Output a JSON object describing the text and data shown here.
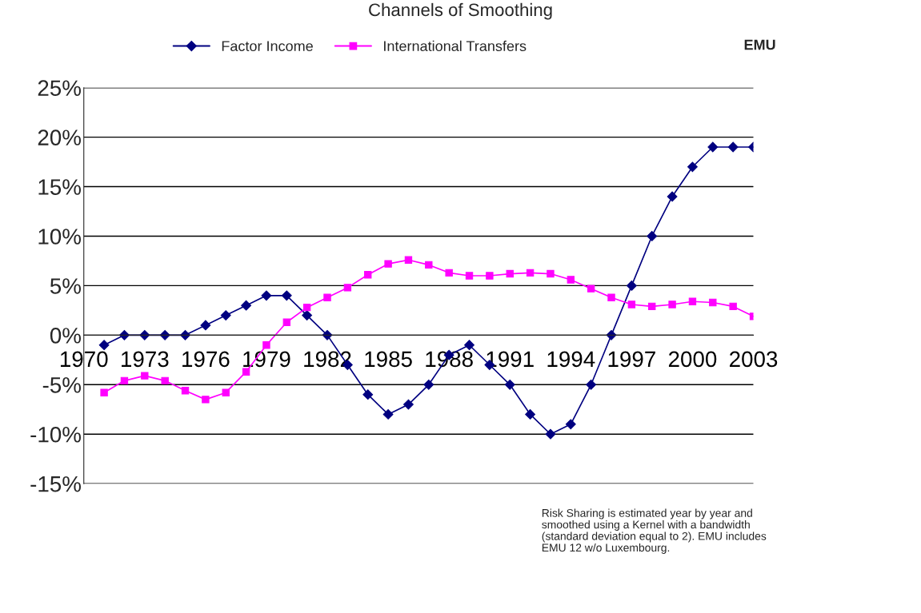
{
  "chart_data": {
    "type": "line",
    "title": "Channels of Smoothing",
    "categories": [
      "1970",
      null,
      null,
      "1973",
      null,
      null,
      "1976",
      null,
      null,
      "1979",
      null,
      null,
      "1982",
      null,
      null,
      "1985",
      null,
      null,
      "1988",
      null,
      null,
      "1991",
      null,
      null,
      "1994",
      null,
      null,
      "1997",
      null,
      null,
      "2000",
      null,
      null,
      "2003"
    ],
    "series": [
      {
        "name": "Factor Income",
        "color": "#000080",
        "marker": "diamond",
        "values": [
          null,
          -1,
          0,
          0,
          0,
          0,
          1,
          2,
          3,
          4,
          4,
          2,
          0,
          -3,
          -6,
          -8,
          -7,
          -5,
          -2,
          -1,
          -3,
          -5,
          -8,
          -10,
          -9,
          -5,
          0,
          5,
          10,
          14,
          17,
          19,
          19,
          19
        ]
      },
      {
        "name": "International Transfers",
        "color": "#ff00ff",
        "marker": "square",
        "values": [
          null,
          -5.8,
          -4.6,
          -4.1,
          -4.6,
          -5.6,
          -6.5,
          -5.8,
          -3.7,
          -1.0,
          1.3,
          2.8,
          3.8,
          4.8,
          6.1,
          7.2,
          7.6,
          7.1,
          6.3,
          6.0,
          6.0,
          6.2,
          6.3,
          6.2,
          5.6,
          4.7,
          3.8,
          3.1,
          2.9,
          3.1,
          3.4,
          3.3,
          2.9,
          1.9
        ]
      }
    ],
    "ylim": [
      -15,
      25
    ],
    "yticks": [
      {
        "value": -15,
        "label": "-15%"
      },
      {
        "value": -10,
        "label": "-10%"
      },
      {
        "value": -5,
        "label": "-5%"
      },
      {
        "value": 0,
        "label": "0%"
      },
      {
        "value": 5,
        "label": "5%"
      },
      {
        "value": 10,
        "label": "10%"
      },
      {
        "value": 15,
        "label": "15%"
      },
      {
        "value": 20,
        "label": "20%"
      },
      {
        "value": 25,
        "label": "25%"
      }
    ],
    "grid": "y",
    "legend": "top",
    "line_style": "solid",
    "annotations": [
      "EMU",
      "Risk Sharing is estimated year by year and\nsmoothed using a Kernel with a bandwidth\n(standard deviation equal to 2). EMU includes\nEMU 12 w/o Luxembourg."
    ]
  }
}
